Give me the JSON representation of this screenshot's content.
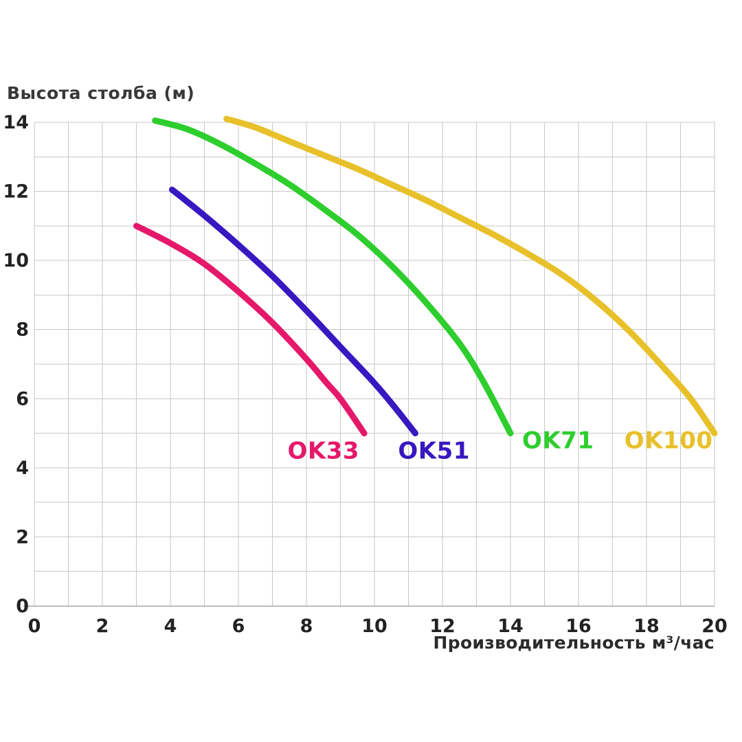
{
  "chart_data": {
    "type": "line",
    "title": "Высота столба (м)",
    "xlabel": "Производительность м³/час",
    "ylabel": "Высота столба (м)",
    "xlim": [
      0,
      20
    ],
    "ylim": [
      0,
      14
    ],
    "x_ticks": [
      0,
      2,
      4,
      6,
      8,
      10,
      12,
      14,
      16,
      18,
      20
    ],
    "y_ticks": [
      0,
      2,
      4,
      6,
      8,
      10,
      12,
      14
    ],
    "grid": true,
    "grid_step_x": 1,
    "grid_step_y": 1,
    "grid_color": "#c7c7c7",
    "axis_color": "#a8a8a8",
    "tick_color": "#222222",
    "legend_position": "inline-curve-labels",
    "series": [
      {
        "name": "OK33",
        "color": "#e5186a",
        "label_pos": [
          8.5,
          4.5
        ],
        "points": [
          [
            3.0,
            11.0
          ],
          [
            4.0,
            10.5
          ],
          [
            5.0,
            9.9
          ],
          [
            6.0,
            9.1
          ],
          [
            7.0,
            8.2
          ],
          [
            8.0,
            7.15
          ],
          [
            8.6,
            6.45
          ],
          [
            9.0,
            6.0
          ],
          [
            9.7,
            5.0
          ]
        ]
      },
      {
        "name": "OK51",
        "color": "#3818c0",
        "label_pos": [
          11.75,
          4.5
        ],
        "points": [
          [
            4.05,
            12.05
          ],
          [
            5.0,
            11.3
          ],
          [
            6.0,
            10.45
          ],
          [
            7.0,
            9.55
          ],
          [
            8.0,
            8.55
          ],
          [
            9.0,
            7.5
          ],
          [
            10.0,
            6.45
          ],
          [
            10.6,
            5.75
          ],
          [
            11.2,
            5.0
          ]
        ]
      },
      {
        "name": "OK71",
        "color": "#2dce2d",
        "label_pos": [
          15.4,
          4.8
        ],
        "points": [
          [
            3.55,
            14.05
          ],
          [
            4.5,
            13.8
          ],
          [
            5.5,
            13.35
          ],
          [
            6.5,
            12.8
          ],
          [
            7.5,
            12.2
          ],
          [
            8.5,
            11.5
          ],
          [
            9.5,
            10.75
          ],
          [
            10.5,
            9.85
          ],
          [
            11.5,
            8.8
          ],
          [
            12.5,
            7.6
          ],
          [
            13.2,
            6.5
          ],
          [
            14.0,
            5.0
          ]
        ]
      },
      {
        "name": "OK100",
        "color": "#e8c02a",
        "label_pos": [
          18.65,
          4.8
        ],
        "points": [
          [
            5.65,
            14.1
          ],
          [
            6.5,
            13.85
          ],
          [
            7.5,
            13.45
          ],
          [
            8.5,
            13.05
          ],
          [
            9.5,
            12.65
          ],
          [
            10.5,
            12.2
          ],
          [
            11.5,
            11.75
          ],
          [
            12.5,
            11.25
          ],
          [
            13.5,
            10.75
          ],
          [
            14.5,
            10.2
          ],
          [
            15.5,
            9.6
          ],
          [
            16.5,
            8.85
          ],
          [
            17.5,
            7.95
          ],
          [
            18.5,
            6.9
          ],
          [
            19.3,
            6.0
          ],
          [
            20.0,
            5.0
          ]
        ]
      }
    ]
  }
}
